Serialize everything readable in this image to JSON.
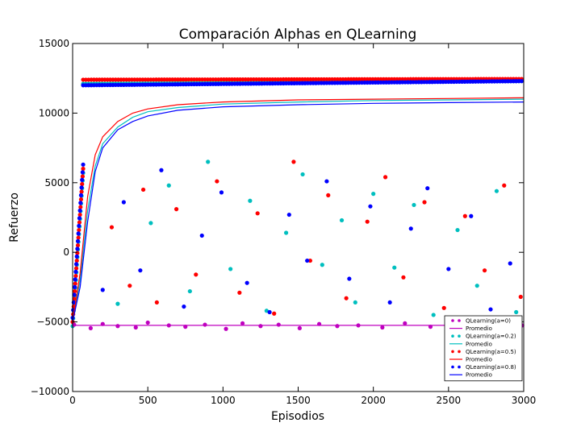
{
  "chart_data": {
    "type": "scatter",
    "title": "Comparación Alphas en QLearning",
    "xlabel": "Episodios",
    "ylabel": "Refuerzo",
    "xlim": [
      0,
      3000
    ],
    "ylim": [
      -10000,
      15000
    ],
    "xticks": [
      0,
      500,
      1000,
      1500,
      2000,
      2500,
      3000
    ],
    "xtick_labels": [
      "0",
      "500",
      "1000",
      "1500",
      "2000",
      "2500",
      "3000"
    ],
    "yticks": [
      -10000,
      -5000,
      0,
      5000,
      10000,
      15000
    ],
    "ytick_labels": [
      "−10000",
      "−5000",
      "0",
      "5000",
      "10000",
      "15000"
    ],
    "grid": false,
    "legend_position": "bottom-right",
    "series": [
      {
        "name": "QLearning(a=0)",
        "kind": "points",
        "color": "#bf00bf",
        "x": [
          10,
          120,
          200,
          300,
          420,
          500,
          640,
          750,
          880,
          1020,
          1130,
          1250,
          1370,
          1510,
          1640,
          1760,
          1900,
          2060,
          2210,
          2380,
          2520,
          2700,
          2880,
          2990
        ],
        "y": [
          -5200,
          -5450,
          -5150,
          -5300,
          -5400,
          -5050,
          -5250,
          -5350,
          -5200,
          -5500,
          -5100,
          -5300,
          -5200,
          -5450,
          -5150,
          -5300,
          -5250,
          -5400,
          -5100,
          -5350,
          -5200,
          -5300,
          -5150,
          -5250
        ]
      },
      {
        "name": "Promedio",
        "kind": "line",
        "color": "#bf00bf",
        "x": [
          0,
          3000
        ],
        "y": [
          -5250,
          -5250
        ]
      },
      {
        "name": "QLearning(a=0.2)",
        "kind": "points",
        "color": "#00bfbf",
        "x": [
          300,
          520,
          640,
          780,
          900,
          1050,
          1180,
          1290,
          1420,
          1530,
          1660,
          1790,
          1880,
          2000,
          2140,
          2270,
          2400,
          2560,
          2690,
          2820,
          2950
        ],
        "y": [
          -3700,
          2100,
          4800,
          -2800,
          6500,
          -1200,
          3700,
          -4200,
          1400,
          5600,
          -900,
          2300,
          -3600,
          4200,
          -1100,
          3400,
          -4500,
          1600,
          -2400,
          4400,
          -4300
        ]
      },
      {
        "name": "Promedio",
        "kind": "line",
        "color": "#00bfbf",
        "x": [
          0,
          50,
          100,
          150,
          200,
          300,
          400,
          500,
          700,
          1000,
          1500,
          2000,
          2500,
          3000
        ],
        "y": [
          -5000,
          -2000,
          3000,
          6200,
          7800,
          9000,
          9700,
          10100,
          10400,
          10650,
          10800,
          10900,
          10950,
          11000
        ]
      },
      {
        "name": "QLearning(a=0.5)",
        "kind": "points",
        "color": "#ff0000",
        "x": [
          260,
          380,
          470,
          560,
          690,
          820,
          960,
          1110,
          1230,
          1340,
          1470,
          1580,
          1700,
          1820,
          1960,
          2080,
          2200,
          2340,
          2470,
          2610,
          2740,
          2870,
          2980
        ],
        "y": [
          1800,
          -2400,
          4500,
          -3600,
          3100,
          -1600,
          5100,
          -2900,
          2800,
          -4400,
          6500,
          -600,
          4100,
          -3300,
          2200,
          5400,
          -1800,
          3600,
          -4000,
          2600,
          -1300,
          4800,
          -3200
        ]
      },
      {
        "name": "Promedio",
        "kind": "line",
        "color": "#ff0000",
        "x": [
          0,
          50,
          100,
          150,
          200,
          300,
          400,
          500,
          700,
          1000,
          1500,
          2000,
          2500,
          3000
        ],
        "y": [
          -5000,
          -1500,
          4000,
          7000,
          8300,
          9400,
          10000,
          10300,
          10600,
          10800,
          10950,
          11000,
          11050,
          11100
        ]
      },
      {
        "name": "QLearning(a=0.8)",
        "kind": "points",
        "color": "#0000ff",
        "x": [
          200,
          340,
          450,
          590,
          740,
          860,
          990,
          1160,
          1310,
          1440,
          1560,
          1690,
          1840,
          1980,
          2110,
          2250,
          2360,
          2500,
          2650,
          2780,
          2910
        ],
        "y": [
          -2700,
          3600,
          -1300,
          5900,
          -3900,
          1200,
          4300,
          -2200,
          -4300,
          2700,
          -600,
          5100,
          -1900,
          3300,
          -3600,
          1700,
          4600,
          -1200,
          2600,
          -4100,
          -800
        ]
      },
      {
        "name": "Promedio",
        "kind": "line",
        "color": "#0000ff",
        "x": [
          0,
          50,
          100,
          150,
          200,
          300,
          400,
          500,
          700,
          1000,
          1500,
          2000,
          2500,
          3000
        ],
        "y": [
          -5000,
          -2500,
          2200,
          5800,
          7500,
          8800,
          9400,
          9800,
          10200,
          10450,
          10600,
          10700,
          10750,
          10800
        ]
      }
    ],
    "upper_bands": [
      {
        "color": "#00bfbf",
        "x": [
          70,
          3000
        ],
        "y": [
          12100,
          12300
        ]
      },
      {
        "color": "#ff0000",
        "x": [
          70,
          3000
        ],
        "y": [
          12400,
          12450
        ]
      },
      {
        "color": "#0000ff",
        "x": [
          70,
          3000
        ],
        "y": [
          12000,
          12300
        ]
      }
    ],
    "ramp": {
      "x0": 0,
      "x1": 70,
      "y0": -5000,
      "y1": 6000
    }
  }
}
